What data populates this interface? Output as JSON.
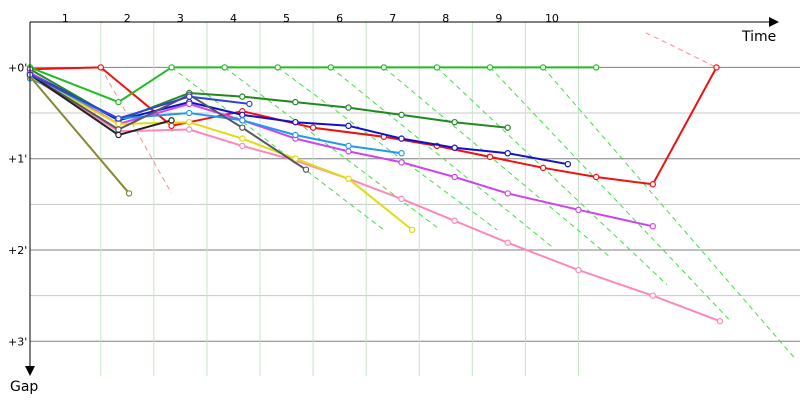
{
  "chart_data": {
    "type": "line",
    "xlabel": "Time",
    "ylabel": "Gap",
    "lap_labels": [
      "1",
      "2",
      "3",
      "4",
      "5",
      "6",
      "7",
      "8",
      "9",
      "10"
    ],
    "gap_ticks": [
      {
        "label": "+0'",
        "value": 0
      },
      {
        "label": "+1'",
        "value": 1
      },
      {
        "label": "+2'",
        "value": 2
      },
      {
        "label": "+3'",
        "value": 3
      }
    ],
    "time_range": [
      0,
      10.88
    ],
    "gap_range": [
      -0.3,
      3.38
    ],
    "grid": true,
    "colors": {
      "grid_major": "#808080",
      "grid_minor": "#c8c8c8",
      "lap_line": "#c6e6c6",
      "pit_green": "#33cc33",
      "pit_red": "#ee6666"
    },
    "pit_lines": [
      {
        "color": "#ff8888",
        "points": [
          [
            1.0,
            0.0
          ],
          [
            2.0,
            1.38
          ]
        ]
      },
      {
        "color": "#44dd44",
        "points": [
          [
            2.0,
            0.0
          ],
          [
            5.0,
            1.78
          ]
        ]
      },
      {
        "color": "#44dd44",
        "points": [
          [
            2.75,
            0.0
          ],
          [
            5.8,
            1.78
          ]
        ]
      },
      {
        "color": "#44dd44",
        "points": [
          [
            3.5,
            0.0
          ],
          [
            6.6,
            1.78
          ]
        ]
      },
      {
        "color": "#44dd44",
        "points": [
          [
            4.25,
            0.0
          ],
          [
            7.4,
            1.98
          ]
        ]
      },
      {
        "color": "#44dd44",
        "points": [
          [
            5.0,
            0.0
          ],
          [
            8.2,
            2.08
          ]
        ]
      },
      {
        "color": "#44dd44",
        "points": [
          [
            5.75,
            0.0
          ],
          [
            9.0,
            2.38
          ]
        ]
      },
      {
        "color": "#44dd44",
        "points": [
          [
            6.5,
            0.0
          ],
          [
            9.9,
            2.78
          ]
        ]
      },
      {
        "color": "#44dd44",
        "points": [
          [
            7.25,
            0.0
          ],
          [
            10.8,
            3.18
          ]
        ]
      },
      {
        "color": "#ff8888",
        "points": [
          [
            8.7,
            -0.38
          ],
          [
            9.7,
            0.0
          ]
        ]
      }
    ],
    "series": [
      {
        "color": "#ee1111",
        "points": [
          [
            0.0,
            0.02
          ],
          [
            1.0,
            0.0
          ],
          [
            2.0,
            0.64
          ],
          [
            3.0,
            0.48
          ],
          [
            4.0,
            0.66
          ],
          [
            5.0,
            0.76
          ],
          [
            5.75,
            0.86
          ],
          [
            6.5,
            0.98
          ],
          [
            7.25,
            1.1
          ],
          [
            8.0,
            1.2
          ],
          [
            8.8,
            1.28
          ],
          [
            9.7,
            0.0
          ]
        ]
      },
      {
        "color": "#22bb22",
        "points": [
          [
            0.0,
            0.0
          ],
          [
            1.25,
            0.38
          ],
          [
            2.0,
            0.0
          ],
          [
            2.75,
            0.0
          ],
          [
            3.5,
            0.0
          ],
          [
            4.25,
            0.0
          ],
          [
            5.0,
            0.0
          ],
          [
            5.75,
            0.0
          ],
          [
            6.5,
            0.0
          ],
          [
            7.25,
            0.0
          ],
          [
            8.0,
            0.0
          ]
        ]
      },
      {
        "color": "#228822",
        "points": [
          [
            0.0,
            0.02
          ],
          [
            1.25,
            0.58
          ],
          [
            2.25,
            0.28
          ],
          [
            3.0,
            0.32
          ],
          [
            3.75,
            0.38
          ],
          [
            4.5,
            0.44
          ],
          [
            5.25,
            0.52
          ],
          [
            6.0,
            0.6
          ],
          [
            6.75,
            0.66
          ]
        ]
      },
      {
        "color": "#1111cc",
        "points": [
          [
            0.0,
            0.06
          ],
          [
            1.25,
            0.58
          ],
          [
            2.25,
            0.38
          ],
          [
            3.0,
            0.52
          ],
          [
            3.75,
            0.6
          ],
          [
            4.5,
            0.64
          ],
          [
            5.25,
            0.78
          ],
          [
            6.0,
            0.88
          ],
          [
            6.75,
            0.94
          ],
          [
            7.6,
            1.06
          ]
        ]
      },
      {
        "color": "#cc44ee",
        "points": [
          [
            0.0,
            0.06
          ],
          [
            1.25,
            0.62
          ],
          [
            2.25,
            0.4
          ],
          [
            3.0,
            0.58
          ],
          [
            3.75,
            0.78
          ],
          [
            4.5,
            0.92
          ],
          [
            5.25,
            1.04
          ],
          [
            6.0,
            1.2
          ],
          [
            6.75,
            1.38
          ],
          [
            7.75,
            1.56
          ],
          [
            8.8,
            1.74
          ]
        ]
      },
      {
        "color": "#ff88bb",
        "points": [
          [
            0.0,
            0.1
          ],
          [
            1.25,
            0.7
          ],
          [
            2.25,
            0.68
          ],
          [
            3.0,
            0.86
          ],
          [
            3.75,
            1.02
          ],
          [
            4.5,
            1.22
          ],
          [
            5.25,
            1.44
          ],
          [
            6.0,
            1.68
          ],
          [
            6.75,
            1.92
          ],
          [
            7.75,
            2.22
          ],
          [
            8.8,
            2.5
          ],
          [
            9.75,
            2.78
          ]
        ]
      },
      {
        "color": "#2299ee",
        "points": [
          [
            0.0,
            0.12
          ],
          [
            1.25,
            0.56
          ],
          [
            2.25,
            0.5
          ],
          [
            3.0,
            0.58
          ],
          [
            3.75,
            0.74
          ],
          [
            4.5,
            0.86
          ],
          [
            5.25,
            0.94
          ]
        ]
      },
      {
        "color": "#dddd11",
        "points": [
          [
            0.0,
            0.1
          ],
          [
            1.25,
            0.62
          ],
          [
            2.25,
            0.6
          ],
          [
            3.0,
            0.78
          ],
          [
            3.75,
            1.0
          ],
          [
            4.5,
            1.22
          ],
          [
            5.4,
            1.78
          ]
        ]
      },
      {
        "color": "#555566",
        "points": [
          [
            0.0,
            0.08
          ],
          [
            1.25,
            0.68
          ],
          [
            2.25,
            0.3
          ],
          [
            3.0,
            0.66
          ],
          [
            3.9,
            1.12
          ]
        ]
      },
      {
        "color": "#222222",
        "points": [
          [
            0.0,
            0.08
          ],
          [
            1.25,
            0.74
          ],
          [
            2.0,
            0.58
          ]
        ]
      },
      {
        "color": "#888833",
        "points": [
          [
            0.0,
            0.1
          ],
          [
            1.4,
            1.38
          ]
        ]
      },
      {
        "color": "#3344cc",
        "points": [
          [
            0.0,
            0.08
          ],
          [
            1.25,
            0.56
          ],
          [
            2.25,
            0.32
          ],
          [
            3.1,
            0.4
          ]
        ]
      }
    ]
  }
}
